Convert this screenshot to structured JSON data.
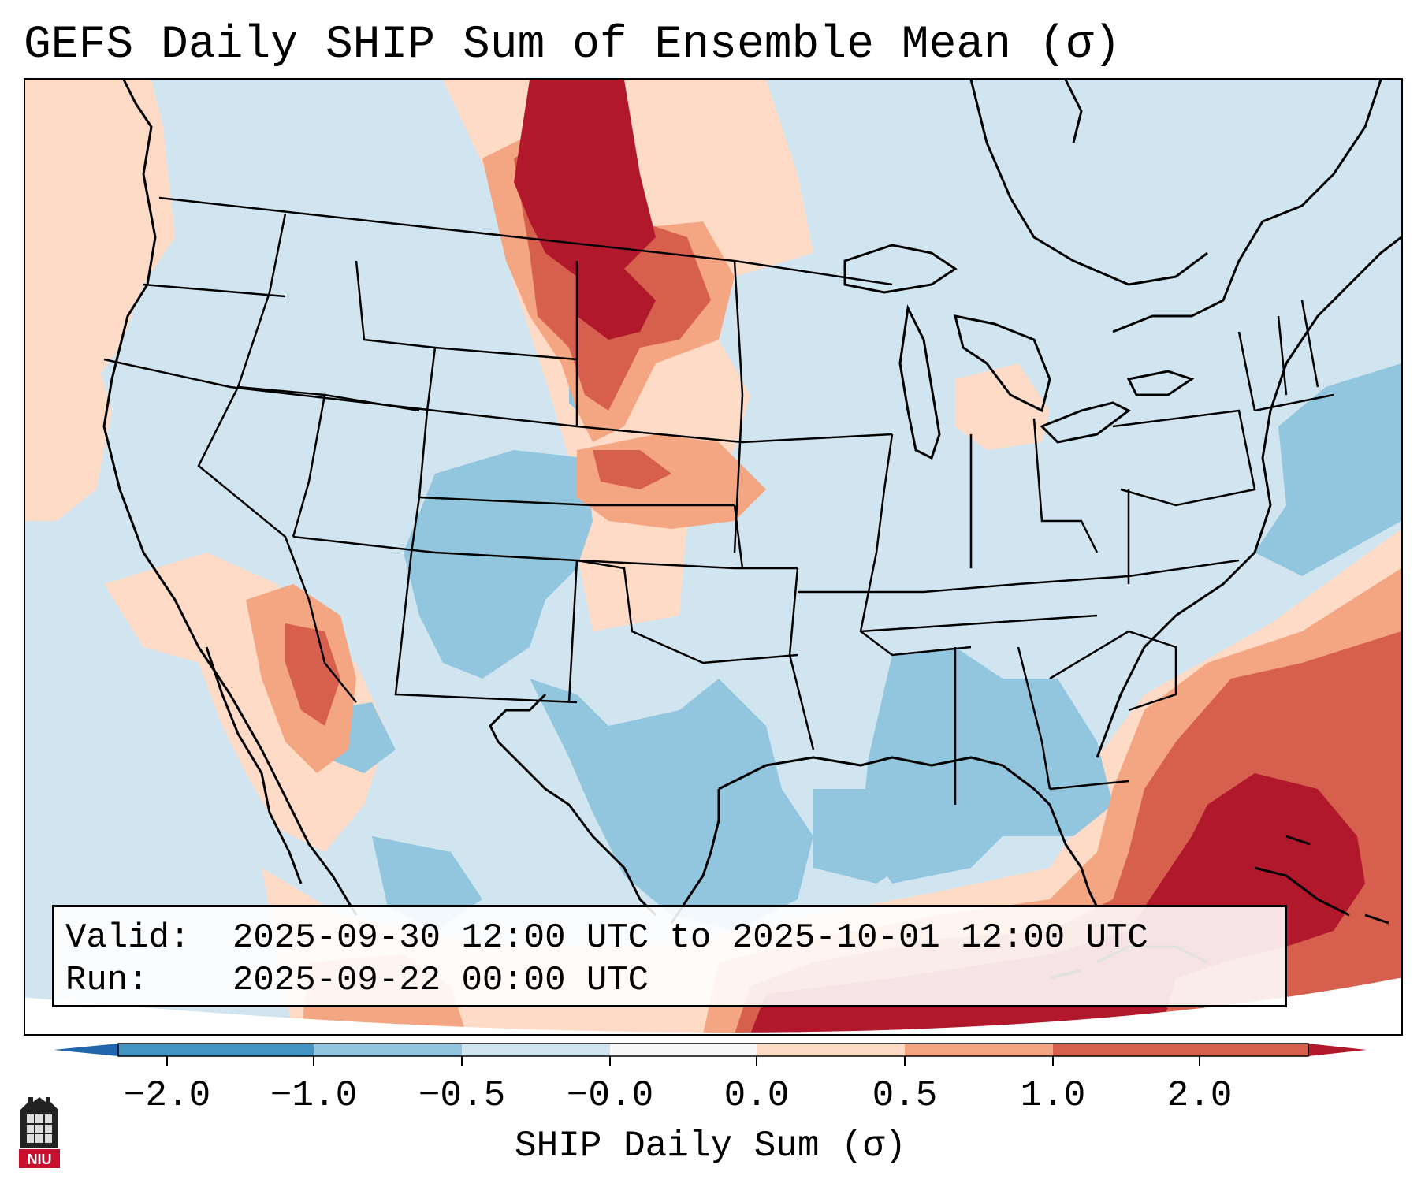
{
  "title": "GEFS Daily SHIP Sum of Ensemble Mean (σ)",
  "info": {
    "valid_label": "Valid:",
    "valid_value": "2025-09-30 12:00 UTC to 2025-10-01 12:00 UTC",
    "run_label": "Run:",
    "run_value": "2025-09-22 00:00 UTC"
  },
  "colorbar": {
    "label": "SHIP Daily Sum (σ)",
    "ticks": [
      "−2.0",
      "−1.0",
      "−0.5",
      "−0.0",
      "0.0",
      "0.5",
      "1.0",
      "2.0"
    ],
    "bins": [
      {
        "from": -2.0,
        "to": -1.0,
        "color": "#4393c3"
      },
      {
        "from": -1.0,
        "to": -0.5,
        "color": "#92c5de"
      },
      {
        "from": -0.5,
        "to": 0.0,
        "color": "#d1e5f0"
      },
      {
        "from": 0.0,
        "to": 0.0,
        "color": "#f7f7f7"
      },
      {
        "from": 0.0,
        "to": 0.5,
        "color": "#fddbc7"
      },
      {
        "from": 0.5,
        "to": 1.0,
        "color": "#f4a582"
      },
      {
        "from": 1.0,
        "to": 2.0,
        "color": "#d6604d"
      }
    ],
    "extend_low_color": "#2166ac",
    "extend_high_color": "#b2182b"
  },
  "colors": {
    "neg_light": "#d1e5f0",
    "neg_mid": "#92c5de",
    "pos_light": "#fddbc7",
    "pos_mid": "#f4a582",
    "pos_strong": "#d6604d",
    "pos_max": "#b2182b"
  },
  "logo": {
    "text": "NIU",
    "icon": "niu-logo-icon"
  }
}
